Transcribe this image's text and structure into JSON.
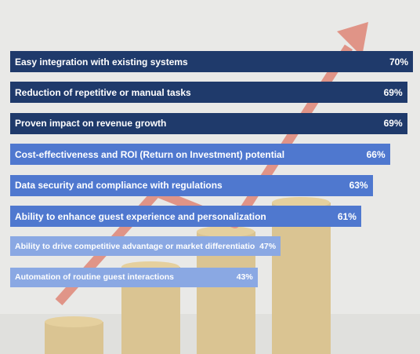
{
  "chart_data": {
    "type": "bar",
    "orientation": "horizontal",
    "xlim": [
      0,
      70
    ],
    "categories": [
      "Easy integration with existing systems",
      "Reduction of repetitive or manual tasks",
      "Proven impact on revenue growth",
      "Cost-effectiveness and ROI (Return on Investment) potential",
      "Data security and compliance with regulations",
      "Ability to enhance guest experience and personalization",
      "Ability to drive competitive advantage or market differentiation",
      "Automation of routine guest interactions"
    ],
    "values": [
      70,
      69,
      69,
      66,
      63,
      61,
      47,
      43
    ],
    "value_labels": [
      "70%",
      "69%",
      "69%",
      "66%",
      "63%",
      "61%",
      "47%",
      "43%"
    ],
    "colors": [
      "#1f3a6b",
      "#1f3a6b",
      "#1f3a6b",
      "#4f78cf",
      "#4f78cf",
      "#4f78cf",
      "#8aa8e3",
      "#8aa8e3"
    ]
  }
}
